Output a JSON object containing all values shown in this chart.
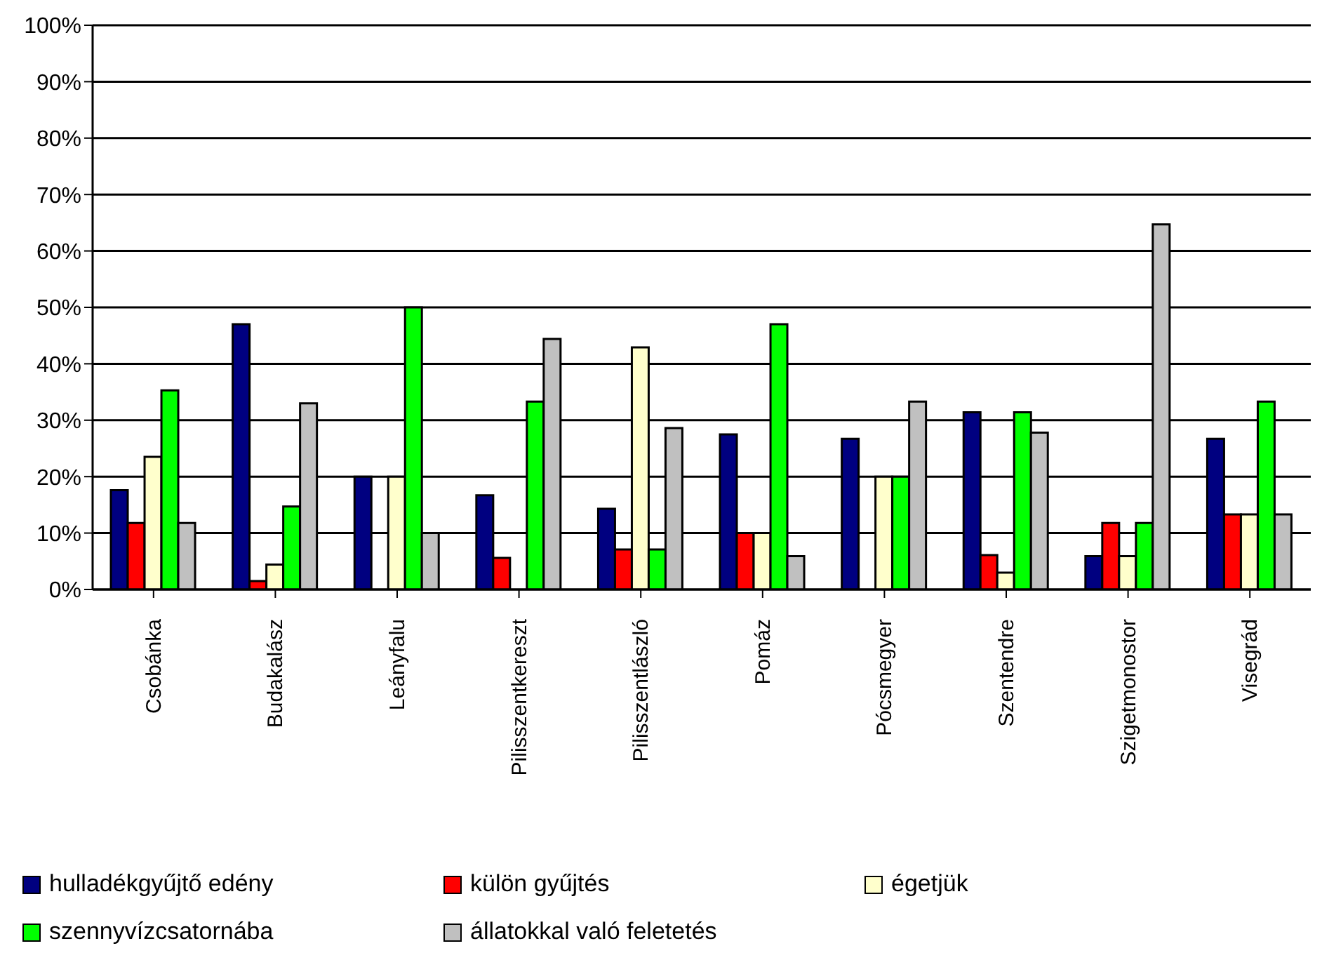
{
  "chart_data": {
    "type": "bar",
    "categories": [
      "Csobánka",
      "Budakalász",
      "Leányfalu",
      "Pilisszentkereszt",
      "Pilisszentlászló",
      "Pomáz",
      "Pócsmegyer",
      "Szentendre",
      "Szigetmonostor",
      "Visegrád"
    ],
    "series": [
      {
        "name": "hulladékgyűjtő edény",
        "color": "#000080",
        "values": [
          17.6,
          47,
          20,
          16.7,
          14.3,
          27.5,
          26.7,
          31.4,
          5.9,
          26.7
        ]
      },
      {
        "name": "külön gyűjtés",
        "color": "#ff0000",
        "values": [
          11.8,
          1.5,
          0,
          5.6,
          7.1,
          10,
          0,
          6.1,
          11.8,
          13.3
        ]
      },
      {
        "name": "égetjük",
        "color": "#ffffcc",
        "values": [
          23.5,
          4.4,
          20,
          0,
          42.9,
          10,
          20,
          3,
          5.9,
          13.3
        ]
      },
      {
        "name": "szennyvízcsatornába",
        "color": "#00ff00",
        "values": [
          35.3,
          14.7,
          50,
          33.3,
          7.1,
          47,
          20,
          31.4,
          11.8,
          33.3
        ]
      },
      {
        "name": "állatokkal való feletetés",
        "color": "#c0c0c0",
        "values": [
          11.8,
          33,
          10,
          44.4,
          28.6,
          5.9,
          33.3,
          27.8,
          64.7,
          13.3
        ]
      }
    ],
    "ylim": [
      0,
      100
    ],
    "yticks": [
      {
        "value": 0,
        "label": "0%"
      },
      {
        "value": 10,
        "label": "10%"
      },
      {
        "value": 20,
        "label": "20%"
      },
      {
        "value": 30,
        "label": "30%"
      },
      {
        "value": 40,
        "label": "40%"
      },
      {
        "value": 50,
        "label": "50%"
      },
      {
        "value": 60,
        "label": "60%"
      },
      {
        "value": 70,
        "label": "70%"
      },
      {
        "value": 80,
        "label": "80%"
      },
      {
        "value": 90,
        "label": "90%"
      },
      {
        "value": 100,
        "label": "100%"
      }
    ],
    "grid": "y",
    "legend": "bottom"
  }
}
